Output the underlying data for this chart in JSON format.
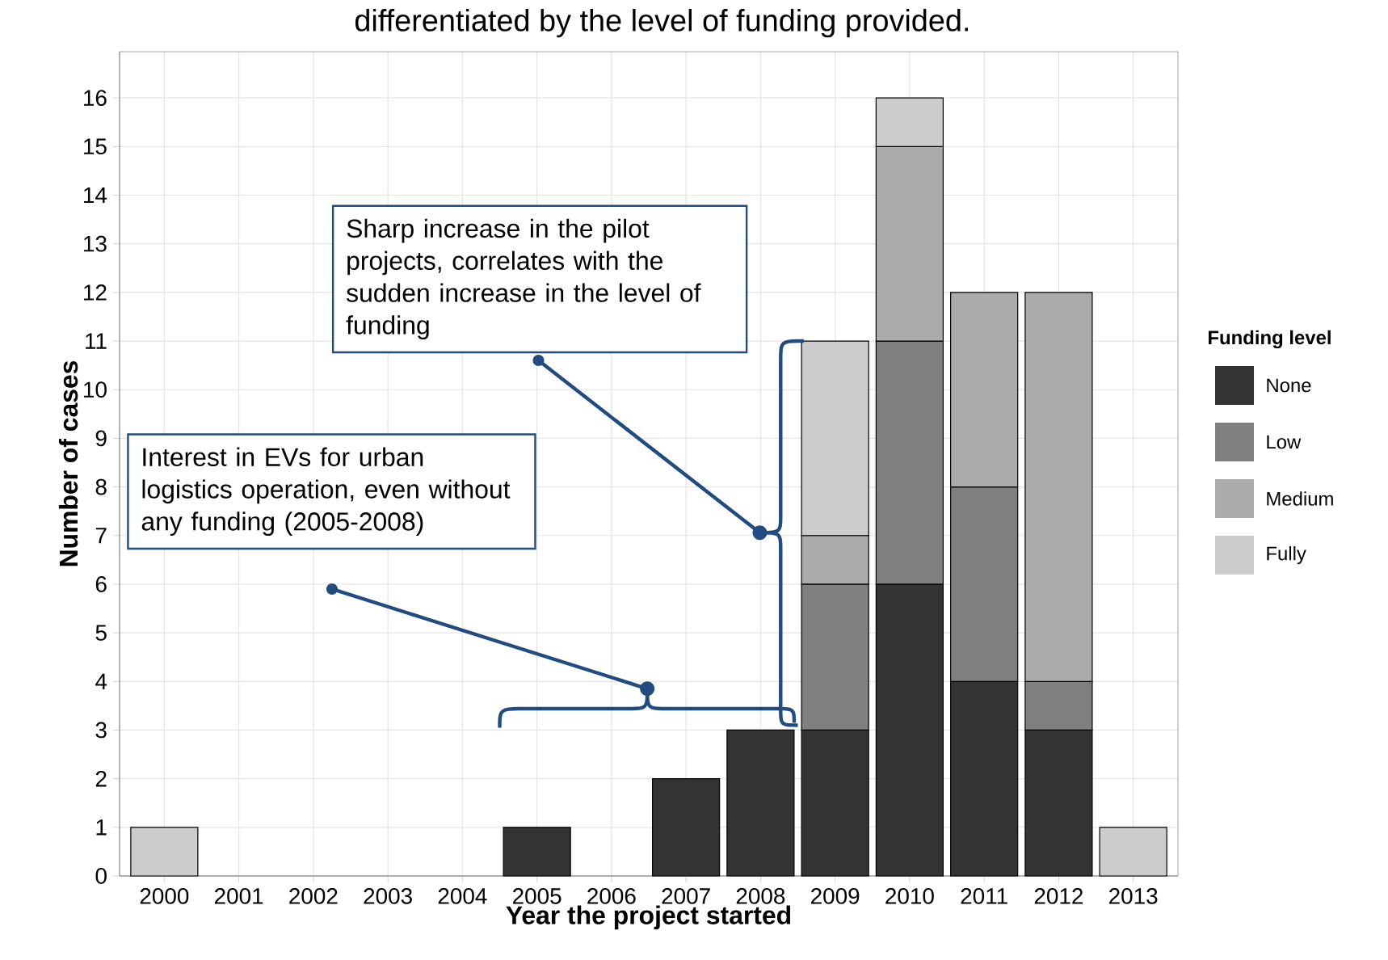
{
  "chart_data": {
    "type": "bar",
    "stacked": true,
    "title": "differentiated by the level of funding provided.",
    "xlabel": "Year the project started",
    "ylabel": "Number of cases",
    "legend_title": "Funding level",
    "categories": [
      "2000",
      "2001",
      "2002",
      "2003",
      "2004",
      "2005",
      "2006",
      "2007",
      "2008",
      "2009",
      "2010",
      "2011",
      "2012",
      "2013"
    ],
    "series": [
      {
        "name": "None",
        "color": "#333333",
        "values": [
          null,
          null,
          null,
          null,
          null,
          1,
          null,
          2,
          3,
          3,
          6,
          4,
          3,
          null
        ]
      },
      {
        "name": "Low",
        "color": "#7f7f7f",
        "values": [
          null,
          null,
          null,
          null,
          null,
          null,
          null,
          null,
          null,
          3,
          5,
          4,
          1,
          null
        ]
      },
      {
        "name": "Medium",
        "color": "#ababab",
        "values": [
          null,
          null,
          null,
          null,
          null,
          null,
          null,
          null,
          null,
          1,
          4,
          4,
          8,
          null
        ]
      },
      {
        "name": "Fully",
        "color": "#cccccc",
        "values": [
          1,
          null,
          null,
          null,
          null,
          null,
          null,
          null,
          null,
          4,
          1,
          null,
          null,
          1
        ]
      }
    ],
    "ylim": [
      0,
      16.95
    ],
    "yticks": [
      0,
      1,
      2,
      3,
      4,
      5,
      6,
      7,
      8,
      9,
      10,
      11,
      12,
      13,
      14,
      15,
      16
    ],
    "grid": true,
    "legend": "right",
    "annotations": [
      "Sharp increase in the pilot projects, correlates with the sudden increase in the level of funding",
      "Interest in EVs for urban logistics operation, even without any funding (2005-2008)"
    ]
  }
}
